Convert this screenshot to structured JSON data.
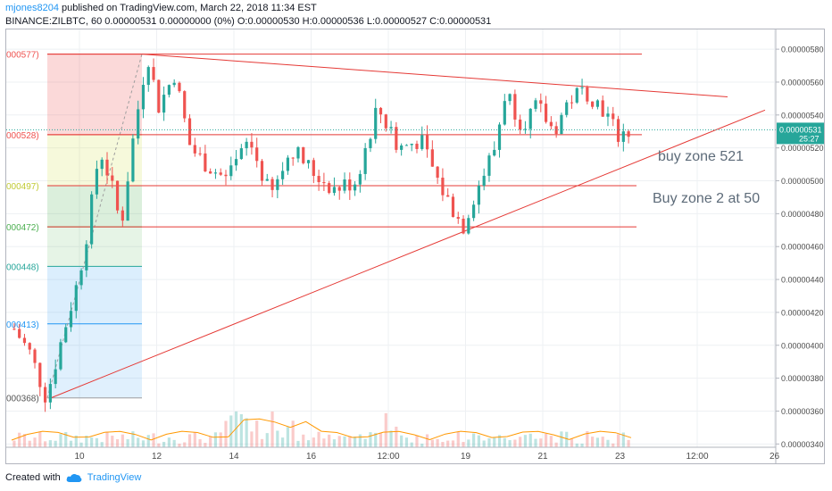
{
  "header": {
    "author": "mjones8204",
    "published": "published on TradingView.com, March 22, 2018 11:34 EST",
    "symbol_line": "BINANCE:ZILBTC, 60  0.00000531  0.00000000 (0%)  O:0.00000530  H:0.00000536  L:0.00000527  C:0.00000531"
  },
  "footer": {
    "created_with": "Created with",
    "brand": "TradingView",
    "logo_icon": "tradingview-cloud-icon"
  },
  "colors": {
    "up": "#26a69a",
    "down": "#ef5350",
    "line": "#e53935",
    "price_tag": "#26a69a",
    "grid": "#eef0f3",
    "axis_text": "#4a4a4a",
    "annotation": "#5d6b79"
  },
  "chart_data": {
    "type": "candlestick",
    "symbol": "ZILBTC",
    "exchange": "BINANCE",
    "interval": "60",
    "last_price": "0.00000531",
    "countdown": "25:27",
    "ylim": [
      3.38e-06,
      5.92e-06
    ],
    "y_ticks": [
      "0.00000580",
      "0.00000560",
      "0.00000540",
      "0.00000520",
      "0.00000500",
      "0.00000480",
      "0.00000460",
      "0.00000440",
      "0.00000420",
      "0.00000400",
      "0.00000380",
      "0.00000360",
      "0.00000340"
    ],
    "x_ticks": [
      "10",
      "12",
      "14",
      "16",
      "12:00",
      "19",
      "21",
      "23",
      "12:00",
      "26"
    ],
    "fib_levels": [
      {
        "label": "000577)",
        "value": 5.77e-06
      },
      {
        "label": "000528)",
        "value": 5.28e-06
      },
      {
        "label": "000497)",
        "value": 4.97e-06
      },
      {
        "label": "000472)",
        "value": 4.72e-06
      },
      {
        "label": "000448)",
        "value": 4.48e-06
      },
      {
        "label": "000413)",
        "value": 4.13e-06
      },
      {
        "label": "000368)",
        "value": 3.68e-06
      }
    ],
    "annotations": [
      "buy zone 521",
      "Buy zone 2 at 50"
    ],
    "price_path": [
      [
        0,
        4.1e-06
      ],
      [
        3,
        3.95e-06
      ],
      [
        6,
        3.68e-06
      ],
      [
        9,
        4.05e-06
      ],
      [
        12,
        4.4e-06
      ],
      [
        14,
        4.75e-06
      ],
      [
        16,
        5.2e-06
      ],
      [
        18,
        5e-06
      ],
      [
        20,
        4.72e-06
      ],
      [
        22,
        5.2e-06
      ],
      [
        24,
        5.6e-06
      ],
      [
        25,
        5.77e-06
      ],
      [
        27,
        5.45e-06
      ],
      [
        30,
        5.65e-06
      ],
      [
        33,
        5.2e-06
      ],
      [
        36,
        5.1e-06
      ],
      [
        40,
        5e-06
      ],
      [
        44,
        5.25e-06
      ],
      [
        48,
        4.9e-06
      ],
      [
        52,
        5.2e-06
      ],
      [
        56,
        5.05e-06
      ],
      [
        60,
        4.95e-06
      ],
      [
        64,
        5e-06
      ],
      [
        68,
        5.45e-06
      ],
      [
        72,
        5.2e-06
      ],
      [
        76,
        5.25e-06
      ],
      [
        80,
        4.95e-06
      ],
      [
        84,
        4.72e-06
      ],
      [
        86,
        4.9e-06
      ],
      [
        88,
        5.05e-06
      ],
      [
        90,
        5.2e-06
      ],
      [
        92,
        5.55e-06
      ],
      [
        95,
        5.35e-06
      ],
      [
        98,
        5.45e-06
      ],
      [
        101,
        5.3e-06
      ],
      [
        104,
        5.5e-06
      ],
      [
        107,
        5.55e-06
      ],
      [
        110,
        5.45e-06
      ],
      [
        113,
        5.28e-06
      ],
      [
        116,
        5.31e-06
      ]
    ]
  }
}
